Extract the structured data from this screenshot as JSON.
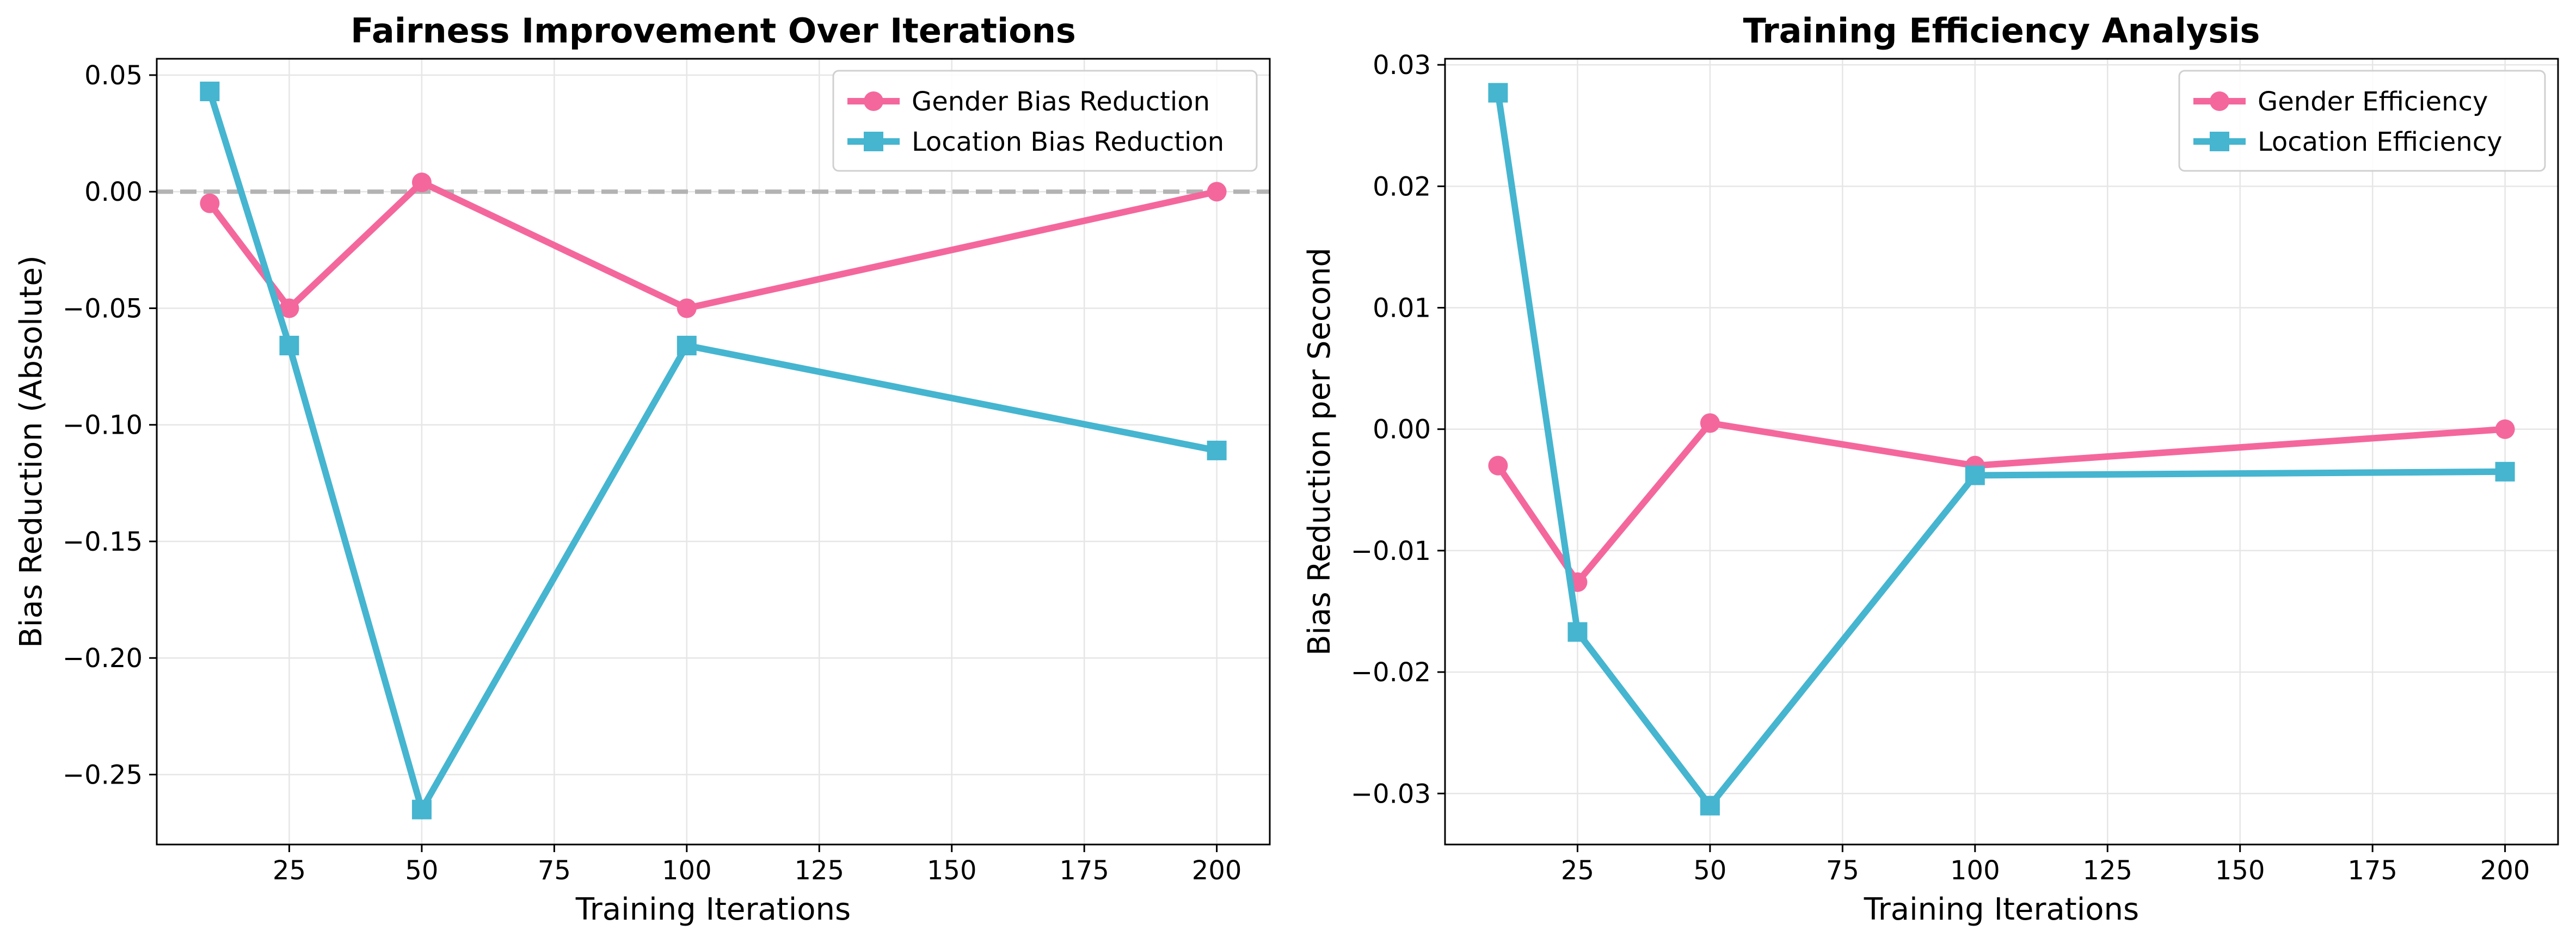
{
  "chart_data": [
    {
      "type": "line",
      "title": "Fairness Improvement Over Iterations",
      "xlabel": "Training Iterations",
      "ylabel": "Bias Reduction (Absolute)",
      "x": [
        10,
        25,
        50,
        100,
        200
      ],
      "xlim": [
        0,
        210
      ],
      "ylim": [
        -0.28,
        0.057
      ],
      "xticks": [
        25,
        50,
        75,
        100,
        125,
        150,
        175,
        200
      ],
      "yticks": [
        0.05,
        0.0,
        -0.05,
        -0.1,
        -0.15,
        -0.2,
        -0.25
      ],
      "ytick_format": 2,
      "grid": true,
      "legend": "top-right",
      "reference_line": {
        "y": 0,
        "color": "#b3b3b3",
        "style": "dashed"
      },
      "series": [
        {
          "name": "Gender Bias Reduction",
          "values": [
            -0.005,
            -0.05,
            0.004,
            -0.05,
            0.0
          ],
          "color": "#f4679d",
          "marker": "circle"
        },
        {
          "name": "Location Bias Reduction",
          "values": [
            0.043,
            -0.066,
            -0.265,
            -0.066,
            -0.111
          ],
          "color": "#45b5d0",
          "marker": "square"
        }
      ]
    },
    {
      "type": "line",
      "title": "Training Efficiency Analysis",
      "xlabel": "Training Iterations",
      "ylabel": "Bias Reduction per Second",
      "x": [
        10,
        25,
        50,
        100,
        200
      ],
      "xlim": [
        0,
        210
      ],
      "ylim": [
        -0.0342,
        0.0305
      ],
      "xticks": [
        25,
        50,
        75,
        100,
        125,
        150,
        175,
        200
      ],
      "yticks": [
        0.03,
        0.02,
        0.01,
        0.0,
        -0.01,
        -0.02,
        -0.03
      ],
      "ytick_format": 2,
      "grid": true,
      "legend": "top-right",
      "series": [
        {
          "name": "Gender Efficiency",
          "values": [
            -0.003,
            -0.0126,
            0.0005,
            -0.003,
            0.0
          ],
          "color": "#f4679d",
          "marker": "circle"
        },
        {
          "name": "Location Efficiency",
          "values": [
            0.0277,
            -0.0167,
            -0.031,
            -0.0038,
            -0.0035
          ],
          "color": "#45b5d0",
          "marker": "square"
        }
      ]
    }
  ]
}
